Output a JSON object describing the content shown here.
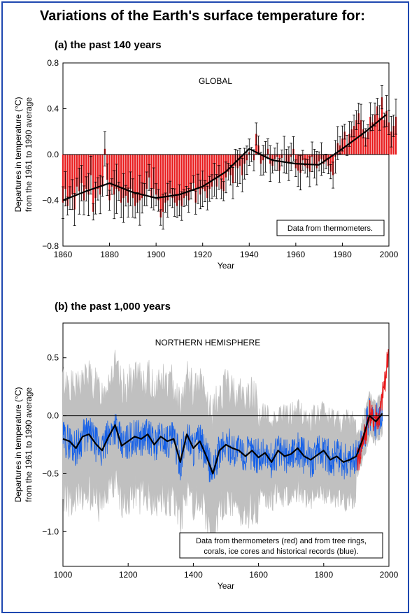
{
  "main_title": "Variations of the Earth's surface temperature for:",
  "colors": {
    "frame": "#1f48b0",
    "bar": "#e8181a",
    "proxy": "#1560e8",
    "band": "#c0c0c0",
    "smooth": "#000000"
  },
  "chart_data": [
    {
      "type": "bar",
      "panel_title": "(a) the past 140 years",
      "region_label": "GLOBAL",
      "note": "Data from thermometers.",
      "xlabel": "Year",
      "ylabel_lines": [
        "Departures in temperature (°C)",
        "from the 1961 to 1990 average"
      ],
      "xlim": [
        1860,
        2000
      ],
      "ylim": [
        -0.8,
        0.8
      ],
      "x_ticks": [
        1860,
        1880,
        1900,
        1920,
        1940,
        1960,
        1980,
        2000
      ],
      "y_ticks": [
        "0.8",
        "0.4",
        "0.0",
        "−0.4",
        "−0.8"
      ],
      "y_tick_values": [
        0.8,
        0.4,
        0.0,
        -0.4,
        -0.8
      ],
      "series": [
        {
          "values_x": [
            1860,
            1870,
            1880,
            1890,
            1900,
            1910,
            1920,
            1930,
            1940,
            1950,
            1960,
            1970,
            1980,
            1990,
            1999
          ],
          "smooth": [
            -0.4,
            -0.32,
            -0.25,
            -0.33,
            -0.38,
            -0.35,
            -0.28,
            -0.15,
            0.05,
            -0.05,
            -0.08,
            -0.09,
            0.05,
            0.2,
            0.35
          ],
          "annual": [
            -0.42,
            -0.3,
            -0.45,
            -0.38,
            -0.35,
            -0.48,
            -0.28,
            -0.32,
            -0.25,
            -0.4,
            -0.3,
            -0.35,
            -0.18,
            -0.5,
            -0.38,
            -0.3,
            -0.35,
            -0.28,
            0.05,
            -0.22,
            -0.4,
            -0.28,
            -0.35,
            -0.3,
            -0.32,
            -0.42,
            -0.38,
            -0.36,
            -0.42,
            -0.3,
            -0.38,
            -0.45,
            -0.42,
            -0.4,
            -0.38,
            -0.35,
            -0.3,
            -0.2,
            -0.38,
            -0.3,
            -0.35,
            -0.4,
            -0.55,
            -0.5,
            -0.42,
            -0.4,
            -0.34,
            -0.38,
            -0.42,
            -0.45,
            -0.4,
            -0.45,
            -0.38,
            -0.36,
            -0.4,
            -0.32,
            -0.25,
            -0.42,
            -0.3,
            -0.35,
            -0.3,
            -0.32,
            -0.38,
            -0.3,
            -0.28,
            -0.22,
            -0.28,
            -0.2,
            -0.3,
            -0.32,
            -0.2,
            -0.15,
            -0.18,
            -0.25,
            -0.1,
            -0.12,
            -0.1,
            -0.18,
            -0.08,
            -0.05,
            0.02,
            0.0,
            -0.05,
            0.18,
            0.08,
            -0.08,
            -0.05,
            -0.02,
            0.05,
            -0.08,
            -0.1,
            -0.04,
            -0.02,
            -0.14,
            -0.03,
            0.0,
            -0.06,
            -0.08,
            -0.02,
            0.05,
            -0.12,
            -0.14,
            -0.16,
            -0.05,
            -0.1,
            -0.12,
            -0.15,
            -0.02,
            -0.08,
            -0.12,
            -0.06,
            -0.04,
            -0.08,
            -0.06,
            -0.1,
            -0.15,
            -0.18,
            -0.02,
            0.1,
            0.08,
            0.14,
            0.2,
            0.08,
            0.18,
            0.22,
            0.25,
            0.3,
            0.36,
            0.3,
            0.22,
            0.15,
            0.2,
            0.33,
            0.28,
            0.35,
            0.42,
            0.32,
            0.5,
            0.3,
            0.38,
            0.28,
            0.2,
            0.25,
            0.33
          ]
        }
      ]
    },
    {
      "type": "line",
      "panel_title": "(b) the past 1,000 years",
      "region_label": "NORTHERN HEMISPHERE",
      "note_lines": [
        "Data from thermometers (red) and from tree rings,",
        "corals, ice cores and historical records (blue)."
      ],
      "xlabel": "Year",
      "ylabel_lines": [
        "Departures in temperature (°C)",
        "from the 1961 to 1990 average"
      ],
      "xlim": [
        1000,
        2000
      ],
      "ylim": [
        -1.3,
        0.8
      ],
      "x_ticks": [
        1000,
        1200,
        1400,
        1600,
        1800,
        2000
      ],
      "y_ticks": [
        "0.5",
        "0.0",
        "−0.5",
        "−1.0"
      ],
      "y_tick_values": [
        0.5,
        0.0,
        -0.5,
        -1.0
      ],
      "smooth": {
        "x": [
          1000,
          1020,
          1040,
          1060,
          1080,
          1100,
          1120,
          1140,
          1160,
          1180,
          1200,
          1220,
          1240,
          1260,
          1280,
          1300,
          1320,
          1340,
          1360,
          1380,
          1400,
          1420,
          1440,
          1460,
          1480,
          1500,
          1520,
          1540,
          1560,
          1580,
          1600,
          1620,
          1640,
          1660,
          1680,
          1700,
          1720,
          1740,
          1760,
          1780,
          1800,
          1820,
          1840,
          1860,
          1880,
          1900,
          1920,
          1940,
          1960,
          1980
        ],
        "y": [
          -0.2,
          -0.22,
          -0.28,
          -0.18,
          -0.16,
          -0.24,
          -0.3,
          -0.18,
          -0.08,
          -0.26,
          -0.22,
          -0.18,
          -0.2,
          -0.16,
          -0.25,
          -0.18,
          -0.22,
          -0.2,
          -0.4,
          -0.16,
          -0.28,
          -0.22,
          -0.35,
          -0.5,
          -0.3,
          -0.25,
          -0.28,
          -0.3,
          -0.35,
          -0.3,
          -0.36,
          -0.32,
          -0.4,
          -0.3,
          -0.35,
          -0.33,
          -0.28,
          -0.35,
          -0.38,
          -0.34,
          -0.3,
          -0.38,
          -0.35,
          -0.4,
          -0.38,
          -0.35,
          -0.2,
          0.0,
          -0.05,
          0.02
        ]
      },
      "thermometer": {
        "x": [
          1902,
          1910,
          1920,
          1930,
          1940,
          1950,
          1960,
          1970,
          1980,
          1990,
          1998
        ],
        "y": [
          -0.4,
          -0.35,
          -0.2,
          -0.15,
          0.05,
          -0.05,
          0.0,
          -0.05,
          0.15,
          0.35,
          0.55
        ]
      }
    }
  ]
}
